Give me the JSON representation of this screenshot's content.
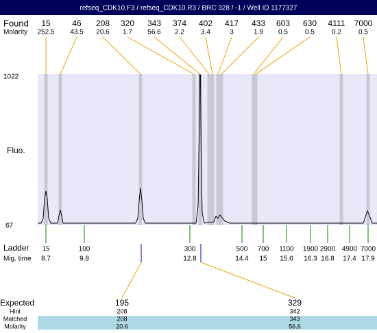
{
  "title": "refseq_CDK10.F3 / refseq_CDK10.R3 / BRC 328 / -1 / Well ID 1177327",
  "found": {
    "label": "Found",
    "sublabel": "Molarity",
    "peaks": [
      {
        "size": "15",
        "molarity": "252.5"
      },
      {
        "size": "46",
        "molarity": "43.5"
      },
      {
        "size": "208",
        "molarity": "20.6"
      },
      {
        "size": "320",
        "molarity": "1.7"
      },
      {
        "size": "343",
        "molarity": "56.6"
      },
      {
        "size": "374",
        "molarity": "2.2"
      },
      {
        "size": "402",
        "molarity": "3.4"
      },
      {
        "size": "417",
        "molarity": "3"
      },
      {
        "size": "433",
        "molarity": "1.9"
      },
      {
        "size": "603",
        "molarity": "0.5"
      },
      {
        "size": "630",
        "molarity": "0.5"
      },
      {
        "size": "4111",
        "molarity": "0.2"
      },
      {
        "size": "7000",
        "molarity": "0.5"
      }
    ]
  },
  "y_axis": {
    "label": "Fluo.",
    "max": "1022",
    "min": "67"
  },
  "ladder": {
    "label": "Ladder",
    "sublabel": "Mig. time",
    "items": [
      {
        "size": "15",
        "time": "8.7"
      },
      {
        "size": "100",
        "time": "9.8"
      },
      {
        "size": "300",
        "time": "12.8"
      },
      {
        "size": "500",
        "time": "14.4"
      },
      {
        "size": "700",
        "time": "15"
      },
      {
        "size": "1100",
        "time": "15.6"
      },
      {
        "size": "1900",
        "time": "16.3"
      },
      {
        "size": "2900",
        "time": "16.8"
      },
      {
        "size": "4900",
        "time": "17.4"
      },
      {
        "size": "7000",
        "time": "17.9"
      }
    ]
  },
  "expected": {
    "label": "Expected",
    "row_labels": [
      "Hint",
      "Matched",
      "Molarity"
    ],
    "columns": [
      {
        "expected": "195",
        "values": [
          "208",
          "208",
          "20.6"
        ]
      },
      {
        "expected": "329",
        "values": [
          "342",
          "343",
          "56.6"
        ]
      }
    ]
  }
}
